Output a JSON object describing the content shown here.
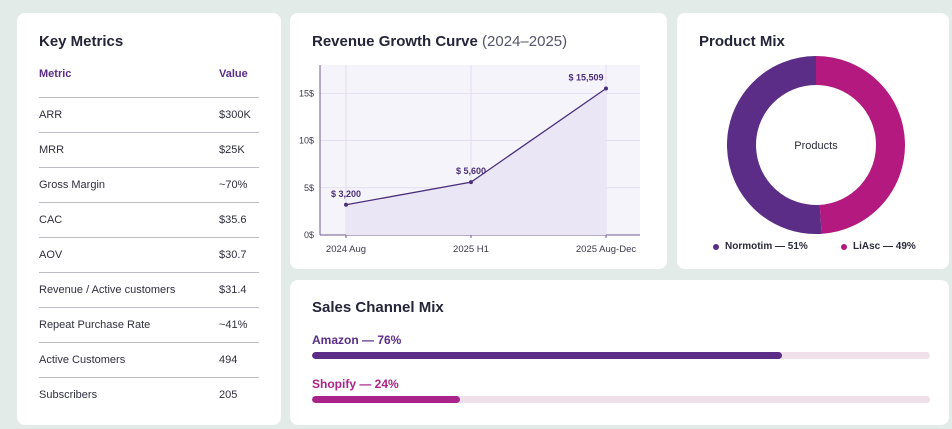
{
  "metrics": {
    "title": "Key Metrics",
    "col_metric": "Metric",
    "col_value": "Value",
    "rows": [
      {
        "metric": "ARR",
        "value": "$300K"
      },
      {
        "metric": "MRR",
        "value": "$25K"
      },
      {
        "metric": "Gross Margin",
        "value": "~70%"
      },
      {
        "metric": "CAC",
        "value": "$35.6"
      },
      {
        "metric": "AOV",
        "value": "$30.7"
      },
      {
        "metric": "Revenue / Active customers",
        "value": "$31.4"
      },
      {
        "metric": "Repeat Purchase Rate",
        "value": "~41%"
      },
      {
        "metric": "Active Customers",
        "value": "494"
      },
      {
        "metric": "Subscribers",
        "value": "205"
      }
    ]
  },
  "revenue": {
    "title": "Revenue Growth Curve",
    "subtitle": "(2024–2025)"
  },
  "product_mix": {
    "title": "Product Mix",
    "center_label": "Products",
    "legend": [
      {
        "label": "Normotim — 51%",
        "color": "#5b2d86"
      },
      {
        "label": "LiAsc — 49%",
        "color": "#b3197f"
      }
    ]
  },
  "sales": {
    "title": "Sales Channel Mix",
    "channels": [
      {
        "label": "Amazon — 76%",
        "share": 0.76,
        "color": "#5b2d86",
        "label_color": "#5b2d86"
      },
      {
        "label": "Shopify — 24%",
        "share": 0.24,
        "color": "#a8248a",
        "label_color": "#a8248a"
      }
    ]
  },
  "chart_data": [
    {
      "type": "area",
      "title": "Revenue Growth Curve (2024–2025)",
      "categories": [
        "2024 Aug",
        "2025 H1",
        "2025 Aug-Dec"
      ],
      "values": [
        3200,
        5600,
        15509
      ],
      "data_labels": [
        "$ 3,200",
        "$ 5,600",
        "$ 15,509"
      ],
      "y_ticks": [
        "0$",
        "5$",
        "10$",
        "15$"
      ],
      "ylim": [
        0,
        18000
      ],
      "grid": true,
      "colors": {
        "line": "#4a2f7a",
        "fill": "#ebe6f6"
      }
    },
    {
      "type": "pie",
      "title": "Product Mix",
      "categories": [
        "Normotim",
        "LiAsc"
      ],
      "values": [
        51,
        49
      ],
      "colors": [
        "#5b2d86",
        "#b3197f"
      ]
    },
    {
      "type": "bar",
      "title": "Sales Channel Mix",
      "categories": [
        "Amazon",
        "Shopify"
      ],
      "values": [
        76,
        24
      ],
      "colors": [
        "#5b2d86",
        "#a8248a"
      ]
    }
  ]
}
